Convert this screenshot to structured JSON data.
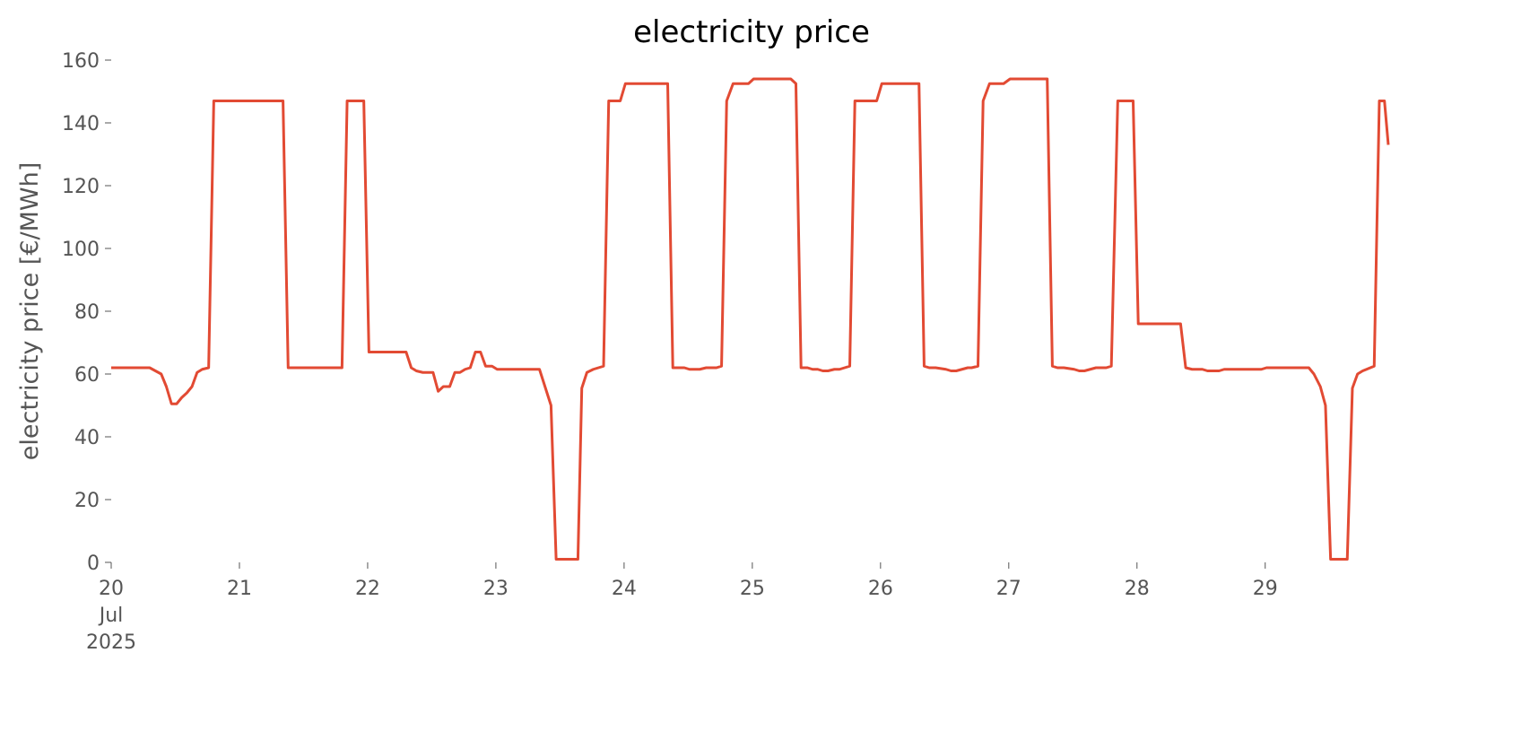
{
  "chart_data": {
    "type": "line",
    "title": "electricity price",
    "ylabel": "electricity price [€/MWh]",
    "x": [
      20.0,
      20.3,
      20.39,
      20.43,
      20.47,
      20.51,
      20.55,
      20.59,
      20.63,
      20.67,
      20.71,
      20.76,
      20.8,
      21.34,
      21.38,
      21.8,
      21.84,
      21.97,
      22.01,
      22.3,
      22.34,
      22.38,
      22.43,
      22.51,
      22.55,
      22.59,
      22.64,
      22.68,
      22.72,
      22.76,
      22.8,
      22.84,
      22.88,
      22.92,
      22.97,
      23.01,
      23.34,
      23.43,
      23.47,
      23.64,
      23.67,
      23.71,
      23.76,
      23.84,
      23.88,
      23.97,
      24.01,
      24.34,
      24.38,
      24.47,
      24.51,
      24.59,
      24.64,
      24.72,
      24.76,
      24.8,
      24.85,
      24.97,
      25.01,
      25.3,
      25.34,
      25.38,
      25.43,
      25.47,
      25.51,
      25.55,
      25.59,
      25.64,
      25.68,
      25.76,
      25.8,
      25.97,
      26.01,
      26.3,
      26.34,
      26.38,
      26.43,
      26.51,
      26.55,
      26.59,
      26.68,
      26.71,
      26.76,
      26.8,
      26.85,
      26.96,
      27.01,
      27.3,
      27.34,
      27.38,
      27.43,
      27.51,
      27.55,
      27.59,
      27.68,
      27.76,
      27.8,
      27.85,
      27.97,
      28.01,
      28.34,
      28.38,
      28.43,
      28.51,
      28.55,
      28.64,
      28.68,
      28.97,
      29.01,
      29.34,
      29.38,
      29.43,
      29.47,
      29.51,
      29.64,
      29.68,
      29.72,
      29.76,
      29.85,
      29.89,
      29.93,
      29.96
    ],
    "series": [
      {
        "name": "electricity price",
        "color": "#e24a33",
        "values": [
          62,
          62,
          60,
          56,
          50.5,
          50.5,
          52.5,
          54,
          56,
          60.5,
          61.5,
          62,
          147,
          147,
          62,
          62,
          147,
          147,
          67,
          67,
          62,
          61,
          60.5,
          60.5,
          54.5,
          56,
          56,
          60.5,
          60.5,
          61.5,
          62,
          67,
          67,
          62.5,
          62.5,
          61.5,
          61.5,
          50,
          1,
          1,
          55.5,
          60.5,
          61.5,
          62.5,
          147,
          147,
          152.5,
          152.5,
          62,
          62,
          61.5,
          61.5,
          62,
          62,
          62.5,
          147,
          152.5,
          152.5,
          154,
          154,
          152.5,
          62,
          62,
          61.5,
          61.5,
          61,
          61,
          61.5,
          61.5,
          62.5,
          147,
          147,
          152.5,
          152.5,
          62.5,
          62,
          62,
          61.5,
          61,
          61,
          62,
          62,
          62.5,
          147,
          152.5,
          152.5,
          154,
          154,
          62.5,
          62,
          62,
          61.5,
          61,
          61,
          62,
          62,
          62.5,
          147,
          147,
          76,
          76,
          62,
          61.5,
          61.5,
          61,
          61,
          61.5,
          61.5,
          62,
          62,
          60,
          56,
          50,
          1,
          1,
          55.5,
          60,
          61,
          62.5,
          147,
          147,
          133
        ]
      }
    ],
    "xlim": [
      20,
      29.96
    ],
    "xticks": [
      {
        "value": 20,
        "label": "20\nJul\n2025"
      },
      21,
      22,
      23,
      24,
      25,
      26,
      27,
      28,
      29
    ],
    "ylim": [
      0,
      160
    ],
    "yticks": [
      0,
      20,
      40,
      60,
      80,
      100,
      120,
      140,
      160
    ],
    "grid": false
  }
}
